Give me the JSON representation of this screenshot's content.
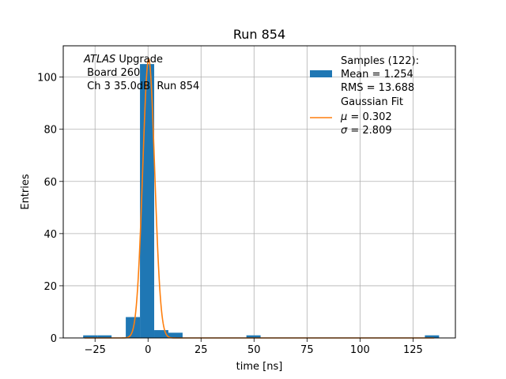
{
  "chart_data": {
    "type": "bar",
    "title": "Run 854",
    "xlabel": "time [ns]",
    "ylabel": "Entries",
    "xlim": [
      -40,
      145
    ],
    "ylim": [
      0,
      112
    ],
    "xticks": [
      -25,
      0,
      25,
      50,
      75,
      100,
      125
    ],
    "yticks": [
      0,
      20,
      40,
      60,
      80,
      100
    ],
    "grid": true,
    "legend_position": "top-right",
    "annotation": {
      "line1_italic": "ATLAS",
      "line1_rest": " Upgrade",
      "line2": " Board 260",
      "line3": " Ch 3 35.0dB  Run 854"
    },
    "histogram": {
      "name": "Samples (122):",
      "bin_width": 6.7,
      "bins": [
        {
          "x_start": -30.6,
          "count": 1
        },
        {
          "x_start": -23.9,
          "count": 1
        },
        {
          "x_start": -10.5,
          "count": 8
        },
        {
          "x_start": -3.8,
          "count": 105
        },
        {
          "x_start": 2.9,
          "count": 3
        },
        {
          "x_start": 9.6,
          "count": 2
        },
        {
          "x_start": 46.4,
          "count": 1
        },
        {
          "x_start": 130.6,
          "count": 1
        }
      ],
      "color": "#1f77b4",
      "legend_lines": [
        "Samples (122):",
        "Mean = 1.254",
        "RMS = 13.688"
      ]
    },
    "fit": {
      "name": "Gaussian Fit",
      "type": "gaussian",
      "mu": 0.302,
      "sigma": 2.809,
      "amplitude": 107,
      "color": "#ff7f0e",
      "legend_line1": "Gaussian Fit",
      "legend_mu_symbol": "μ",
      "legend_mu_rest": " = 0.302",
      "legend_sigma_symbol": "σ",
      "legend_sigma_rest": " = 2.809"
    }
  }
}
